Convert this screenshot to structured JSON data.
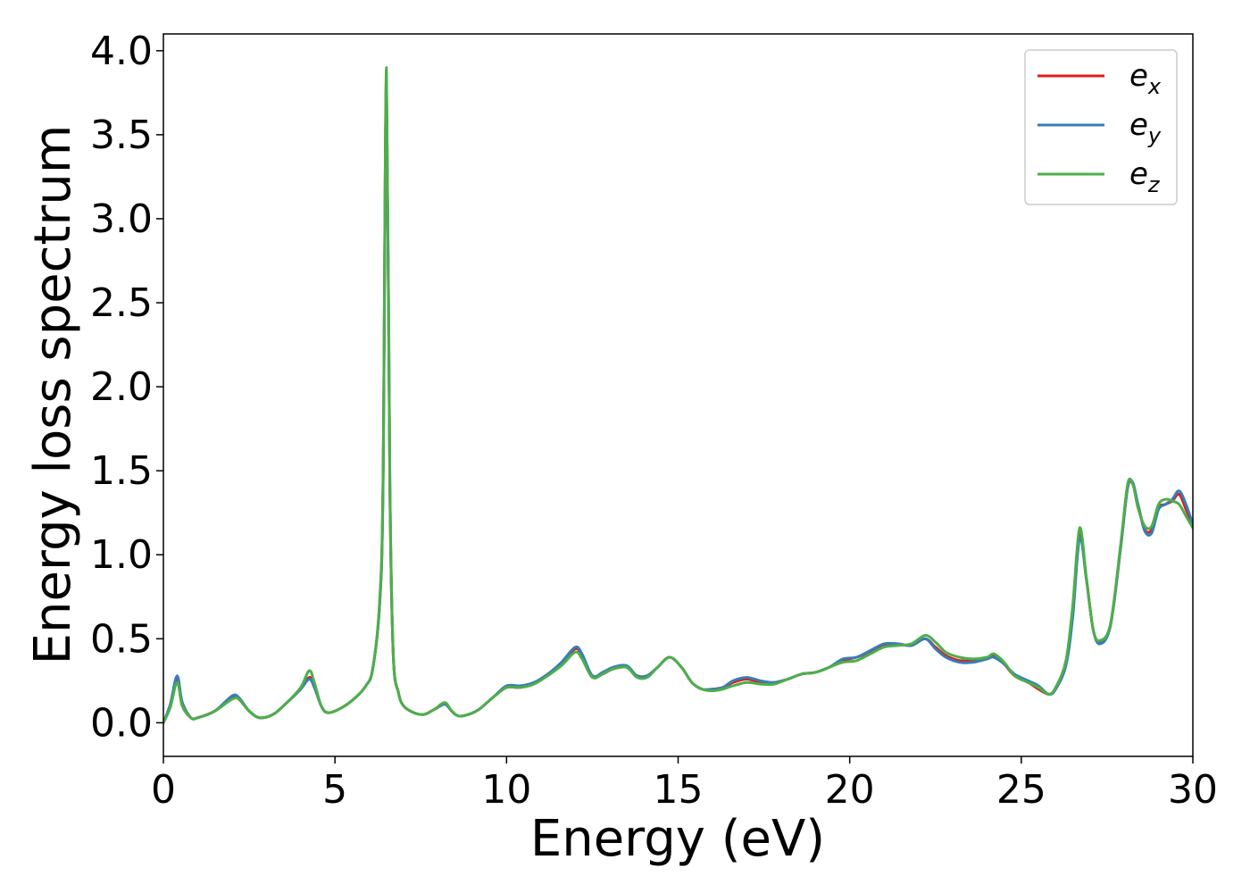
{
  "chart_data": {
    "type": "line",
    "title": "",
    "xlabel": "Energy (eV)",
    "ylabel": "Energy loss spectrum",
    "xlim": [
      0,
      30
    ],
    "ylim": [
      -0.2,
      4.1
    ],
    "xticks": [
      0,
      5,
      10,
      15,
      20,
      25,
      30
    ],
    "xtick_labels": [
      "0",
      "5",
      "10",
      "15",
      "20",
      "25",
      "30"
    ],
    "yticks": [
      0.0,
      0.5,
      1.0,
      1.5,
      2.0,
      2.5,
      3.0,
      3.5,
      4.0
    ],
    "ytick_labels": [
      "0.0",
      "0.5",
      "1.0",
      "1.5",
      "2.0",
      "2.5",
      "3.0",
      "3.5",
      "4.0"
    ],
    "grid": false,
    "legend_position": "top-right",
    "series": [
      {
        "name": "e_x",
        "label_base": "e",
        "label_sub": "x",
        "color": "#e41a1c",
        "x": [
          0,
          0.2,
          0.4,
          0.55,
          0.8,
          1.0,
          1.5,
          2.0,
          2.2,
          2.5,
          2.8,
          3.2,
          3.6,
          4.0,
          4.25,
          4.4,
          4.6,
          4.8,
          5.2,
          5.6,
          5.9,
          6.1,
          6.3,
          6.4,
          6.5,
          6.6,
          6.7,
          6.85,
          7.0,
          7.3,
          7.6,
          7.9,
          8.2,
          8.4,
          8.6,
          8.9,
          9.2,
          9.6,
          10.0,
          10.4,
          10.8,
          11.2,
          11.6,
          12.0,
          12.2,
          12.5,
          12.8,
          13.1,
          13.5,
          13.8,
          14.1,
          14.4,
          14.75,
          15.1,
          15.4,
          15.7,
          16.0,
          16.3,
          16.6,
          17.0,
          17.4,
          17.8,
          18.2,
          18.6,
          19.0,
          19.4,
          19.8,
          20.2,
          20.6,
          21.0,
          21.4,
          21.8,
          22.2,
          22.5,
          22.8,
          23.2,
          23.6,
          24.0,
          24.2,
          24.5,
          24.8,
          25.2,
          25.5,
          25.8,
          26.0,
          26.3,
          26.5,
          26.7,
          26.9,
          27.1,
          27.3,
          27.6,
          27.9,
          28.1,
          28.25,
          28.4,
          28.6,
          28.8,
          29.0,
          29.2,
          29.4,
          29.6,
          29.8,
          30.0
        ],
        "y": [
          0.0,
          0.1,
          0.26,
          0.12,
          0.03,
          0.03,
          0.07,
          0.15,
          0.14,
          0.07,
          0.03,
          0.05,
          0.12,
          0.2,
          0.27,
          0.22,
          0.1,
          0.06,
          0.09,
          0.15,
          0.22,
          0.32,
          0.7,
          1.4,
          3.85,
          1.4,
          0.4,
          0.18,
          0.1,
          0.06,
          0.05,
          0.08,
          0.11,
          0.07,
          0.04,
          0.05,
          0.08,
          0.15,
          0.21,
          0.21,
          0.24,
          0.28,
          0.35,
          0.44,
          0.4,
          0.28,
          0.29,
          0.32,
          0.33,
          0.28,
          0.28,
          0.33,
          0.39,
          0.33,
          0.24,
          0.2,
          0.2,
          0.21,
          0.24,
          0.26,
          0.24,
          0.24,
          0.26,
          0.29,
          0.3,
          0.33,
          0.37,
          0.39,
          0.42,
          0.46,
          0.47,
          0.46,
          0.5,
          0.45,
          0.4,
          0.37,
          0.37,
          0.38,
          0.4,
          0.35,
          0.28,
          0.24,
          0.2,
          0.17,
          0.2,
          0.35,
          0.65,
          1.12,
          0.85,
          0.55,
          0.48,
          0.58,
          1.05,
          1.4,
          1.42,
          1.3,
          1.15,
          1.15,
          1.28,
          1.3,
          1.32,
          1.36,
          1.27,
          1.17
        ]
      },
      {
        "name": "e_y",
        "label_base": "e",
        "label_sub": "y",
        "color": "#377eb8",
        "x": [
          0,
          0.2,
          0.4,
          0.55,
          0.8,
          1.0,
          1.5,
          2.0,
          2.2,
          2.5,
          2.8,
          3.2,
          3.6,
          4.0,
          4.25,
          4.4,
          4.6,
          4.8,
          5.2,
          5.6,
          5.9,
          6.1,
          6.3,
          6.4,
          6.5,
          6.6,
          6.7,
          6.85,
          7.0,
          7.3,
          7.6,
          7.9,
          8.2,
          8.4,
          8.6,
          8.9,
          9.2,
          9.6,
          10.0,
          10.4,
          10.8,
          11.2,
          11.6,
          12.0,
          12.2,
          12.5,
          12.8,
          13.1,
          13.5,
          13.8,
          14.1,
          14.4,
          14.75,
          15.1,
          15.4,
          15.7,
          16.0,
          16.3,
          16.6,
          17.0,
          17.4,
          17.8,
          18.2,
          18.6,
          19.0,
          19.4,
          19.8,
          20.2,
          20.6,
          21.0,
          21.4,
          21.8,
          22.2,
          22.5,
          22.8,
          23.2,
          23.6,
          24.0,
          24.2,
          24.5,
          24.8,
          25.2,
          25.5,
          25.8,
          26.0,
          26.3,
          26.5,
          26.7,
          26.9,
          27.1,
          27.3,
          27.6,
          27.9,
          28.1,
          28.25,
          28.4,
          28.6,
          28.8,
          29.0,
          29.2,
          29.4,
          29.6,
          29.8,
          30.0
        ],
        "y": [
          0.0,
          0.11,
          0.28,
          0.12,
          0.03,
          0.03,
          0.07,
          0.16,
          0.15,
          0.07,
          0.03,
          0.05,
          0.12,
          0.2,
          0.26,
          0.21,
          0.1,
          0.06,
          0.09,
          0.15,
          0.22,
          0.32,
          0.7,
          1.4,
          3.8,
          1.4,
          0.4,
          0.18,
          0.1,
          0.06,
          0.05,
          0.08,
          0.11,
          0.07,
          0.04,
          0.05,
          0.08,
          0.15,
          0.22,
          0.22,
          0.24,
          0.29,
          0.36,
          0.45,
          0.41,
          0.28,
          0.3,
          0.33,
          0.34,
          0.28,
          0.28,
          0.33,
          0.39,
          0.33,
          0.24,
          0.2,
          0.2,
          0.21,
          0.25,
          0.27,
          0.25,
          0.24,
          0.26,
          0.29,
          0.3,
          0.33,
          0.38,
          0.39,
          0.43,
          0.47,
          0.47,
          0.46,
          0.5,
          0.44,
          0.39,
          0.36,
          0.36,
          0.38,
          0.39,
          0.35,
          0.29,
          0.25,
          0.22,
          0.17,
          0.2,
          0.34,
          0.63,
          1.1,
          0.85,
          0.55,
          0.47,
          0.58,
          1.05,
          1.4,
          1.43,
          1.3,
          1.14,
          1.13,
          1.27,
          1.3,
          1.33,
          1.38,
          1.3,
          1.18
        ]
      },
      {
        "name": "e_z",
        "label_base": "e",
        "label_sub": "z",
        "color": "#4daf4a",
        "x": [
          0,
          0.2,
          0.4,
          0.55,
          0.8,
          1.0,
          1.5,
          2.0,
          2.2,
          2.5,
          2.8,
          3.2,
          3.6,
          4.0,
          4.25,
          4.4,
          4.6,
          4.8,
          5.2,
          5.6,
          5.9,
          6.1,
          6.3,
          6.4,
          6.5,
          6.6,
          6.7,
          6.85,
          7.0,
          7.3,
          7.6,
          7.9,
          8.2,
          8.4,
          8.6,
          8.9,
          9.2,
          9.6,
          10.0,
          10.4,
          10.8,
          11.2,
          11.6,
          12.0,
          12.2,
          12.5,
          12.8,
          13.1,
          13.5,
          13.8,
          14.1,
          14.4,
          14.75,
          15.1,
          15.4,
          15.7,
          16.0,
          16.3,
          16.6,
          17.0,
          17.4,
          17.8,
          18.2,
          18.6,
          19.0,
          19.4,
          19.8,
          20.2,
          20.6,
          21.0,
          21.4,
          21.8,
          22.2,
          22.5,
          22.8,
          23.2,
          23.6,
          24.0,
          24.2,
          24.5,
          24.8,
          25.2,
          25.5,
          25.8,
          26.0,
          26.3,
          26.5,
          26.7,
          26.9,
          27.1,
          27.3,
          27.6,
          27.9,
          28.1,
          28.25,
          28.4,
          28.6,
          28.8,
          29.0,
          29.2,
          29.4,
          29.6,
          29.8,
          30.0
        ],
        "y": [
          0.0,
          0.09,
          0.24,
          0.1,
          0.03,
          0.03,
          0.07,
          0.14,
          0.14,
          0.07,
          0.03,
          0.05,
          0.12,
          0.21,
          0.31,
          0.24,
          0.1,
          0.06,
          0.09,
          0.15,
          0.22,
          0.32,
          0.72,
          1.45,
          3.9,
          1.45,
          0.4,
          0.18,
          0.1,
          0.06,
          0.05,
          0.08,
          0.12,
          0.07,
          0.04,
          0.05,
          0.08,
          0.15,
          0.21,
          0.21,
          0.23,
          0.28,
          0.34,
          0.42,
          0.38,
          0.27,
          0.29,
          0.32,
          0.33,
          0.27,
          0.27,
          0.33,
          0.39,
          0.33,
          0.24,
          0.2,
          0.19,
          0.2,
          0.22,
          0.24,
          0.23,
          0.23,
          0.26,
          0.29,
          0.3,
          0.33,
          0.36,
          0.37,
          0.41,
          0.45,
          0.46,
          0.47,
          0.52,
          0.48,
          0.42,
          0.39,
          0.38,
          0.39,
          0.41,
          0.36,
          0.28,
          0.24,
          0.21,
          0.17,
          0.21,
          0.37,
          0.7,
          1.16,
          0.86,
          0.55,
          0.49,
          0.59,
          1.07,
          1.42,
          1.42,
          1.28,
          1.17,
          1.17,
          1.3,
          1.33,
          1.32,
          1.3,
          1.23,
          1.16
        ]
      }
    ]
  }
}
